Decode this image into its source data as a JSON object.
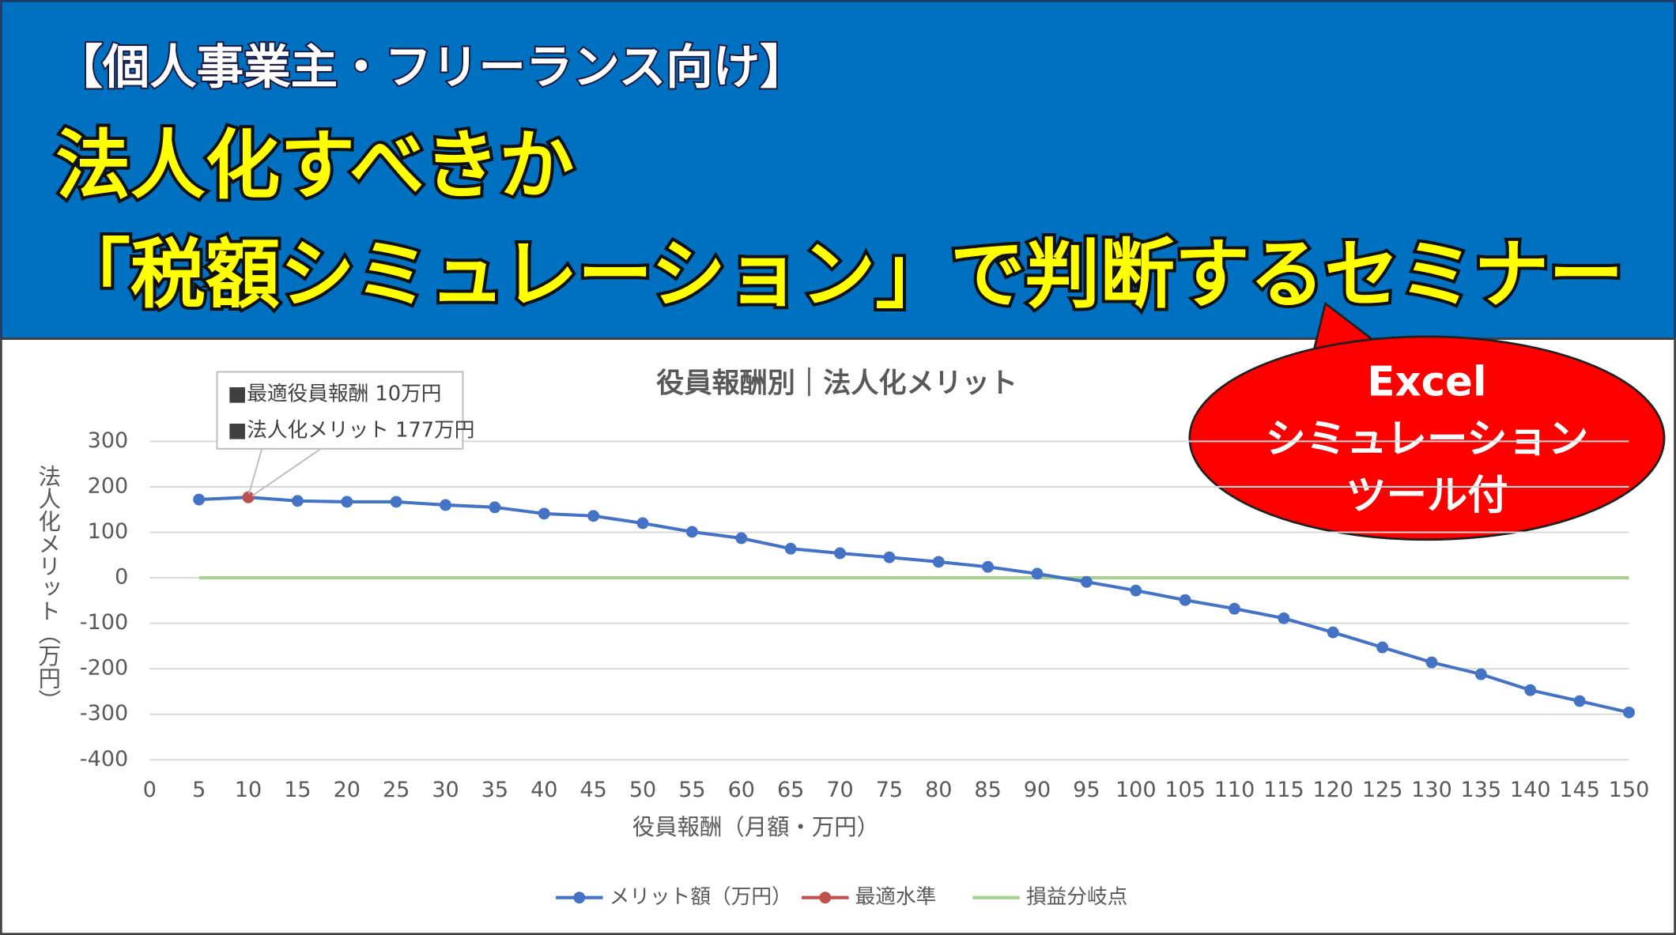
{
  "header": {
    "subtitle": "【個人事業主・フリーランス向け】",
    "title_lines": [
      "法人化すべきか",
      "「税額シミュレーション」で判断するセミナー"
    ]
  },
  "callout": {
    "lines": [
      "Excel",
      "シミュレーション",
      "ツール付"
    ]
  },
  "chart_data": {
    "type": "line",
    "title": "役員報酬別｜法人化メリット",
    "x_label": "役員報酬（月額・万円）",
    "y_label": "法人化メリット（万円）",
    "xlim": [
      0,
      150
    ],
    "xticks": [
      0,
      5,
      10,
      15,
      20,
      25,
      30,
      35,
      40,
      45,
      50,
      55,
      60,
      65,
      70,
      75,
      80,
      85,
      90,
      95,
      100,
      105,
      110,
      115,
      120,
      125,
      130,
      135,
      140,
      145,
      150
    ],
    "ylim": [
      -400,
      300
    ],
    "yticks": [
      300,
      200,
      100,
      0,
      -100,
      -200,
      -300,
      -400
    ],
    "negative_tick_color": "#ff0000",
    "grid": true,
    "legend": "bottom",
    "annotation": {
      "lines": [
        "■最適役員報酬 10万円",
        "■法人化メリット 177万円"
      ]
    },
    "series": [
      {
        "name": "メリット額（万円）",
        "color": "#4472c4",
        "marker": true,
        "x": [
          5,
          10,
          15,
          20,
          25,
          30,
          35,
          40,
          45,
          50,
          55,
          60,
          65,
          70,
          75,
          80,
          85,
          90,
          95,
          100,
          105,
          110,
          115,
          120,
          125,
          130,
          135,
          140,
          145,
          150
        ],
        "values": [
          172,
          177,
          169,
          167,
          167,
          160,
          155,
          141,
          136,
          120,
          101,
          87,
          64,
          54,
          45,
          35,
          24,
          9,
          -9,
          -28,
          -49,
          -68,
          -89,
          -120,
          -153,
          -186,
          -212,
          -247,
          -271,
          -296
        ]
      },
      {
        "name": "最適水準",
        "color": "#c0504d",
        "marker": true,
        "x": [
          10
        ],
        "values": [
          177
        ]
      },
      {
        "name": "損益分岐点",
        "color": "#a9d18e",
        "marker": false,
        "x": [
          5,
          150
        ],
        "values": [
          0,
          0
        ]
      }
    ]
  }
}
